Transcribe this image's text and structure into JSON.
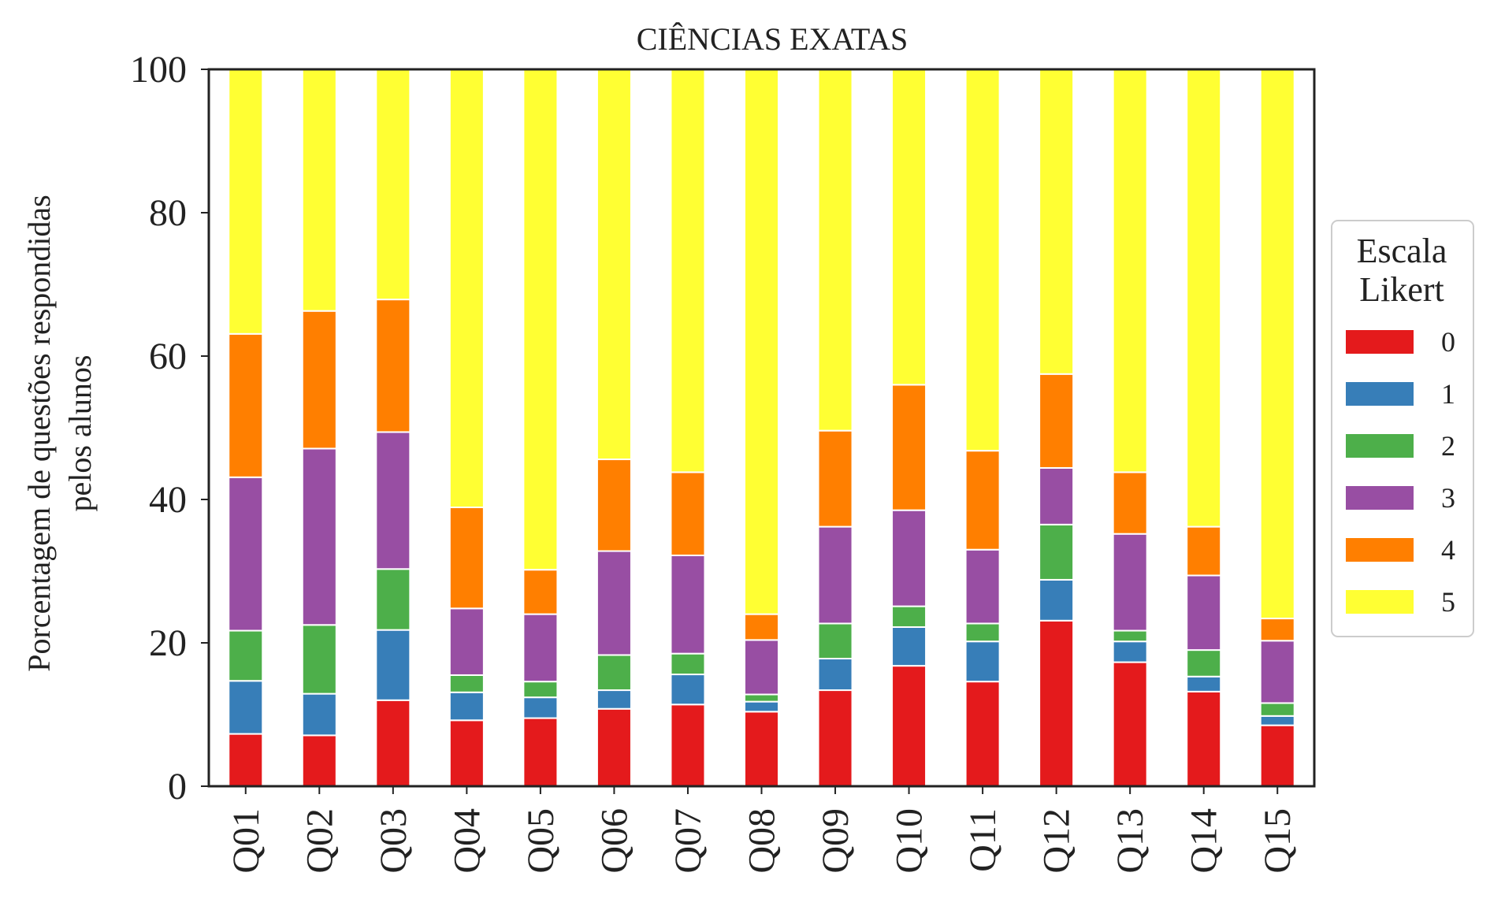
{
  "chart_data": {
    "type": "bar",
    "stacked": true,
    "title": "CIÊNCIAS EXATAS",
    "ylabel": [
      "Porcentagem de questões respondidas",
      "pelos alunos"
    ],
    "xlabel": "",
    "ylim": [
      0,
      100
    ],
    "yticks": [
      0,
      20,
      40,
      60,
      80,
      100
    ],
    "grid": false,
    "legend": {
      "title": [
        "Escala",
        "Likert"
      ],
      "placement": "right"
    },
    "categories": [
      "Q01",
      "Q02",
      "Q03",
      "Q04",
      "Q05",
      "Q06",
      "Q07",
      "Q08",
      "Q09",
      "Q10",
      "Q11",
      "Q12",
      "Q13",
      "Q14",
      "Q15"
    ],
    "series": [
      {
        "name": "0",
        "color": "#e41a1c",
        "values": [
          7.3,
          7.1,
          12.0,
          9.2,
          9.5,
          10.8,
          11.4,
          10.4,
          13.4,
          16.8,
          14.6,
          23.1,
          17.3,
          13.2,
          8.5
        ]
      },
      {
        "name": "1",
        "color": "#377eb8",
        "values": [
          7.4,
          5.8,
          9.8,
          3.9,
          2.9,
          2.6,
          4.2,
          1.4,
          4.4,
          5.4,
          5.6,
          5.7,
          2.9,
          2.1,
          1.3
        ]
      },
      {
        "name": "2",
        "color": "#4daf4a",
        "values": [
          7.0,
          9.6,
          8.5,
          2.4,
          2.2,
          4.9,
          2.9,
          1.0,
          4.9,
          2.9,
          2.5,
          7.7,
          1.5,
          3.7,
          1.8
        ]
      },
      {
        "name": "3",
        "color": "#984ea3",
        "values": [
          21.4,
          24.6,
          19.1,
          9.3,
          9.4,
          14.5,
          13.7,
          7.6,
          13.5,
          13.4,
          10.3,
          7.9,
          13.5,
          10.4,
          8.7
        ]
      },
      {
        "name": "4",
        "color": "#ff7f00",
        "values": [
          20.0,
          19.2,
          18.5,
          14.1,
          6.2,
          12.8,
          11.6,
          3.6,
          13.4,
          17.5,
          13.8,
          13.1,
          8.6,
          6.8,
          3.1
        ]
      },
      {
        "name": "5",
        "color": "#ffff33",
        "values": [
          36.9,
          33.7,
          32.1,
          61.1,
          69.8,
          54.4,
          56.2,
          76.0,
          50.4,
          44.0,
          53.2,
          42.5,
          56.2,
          63.8,
          76.6
        ]
      }
    ]
  }
}
